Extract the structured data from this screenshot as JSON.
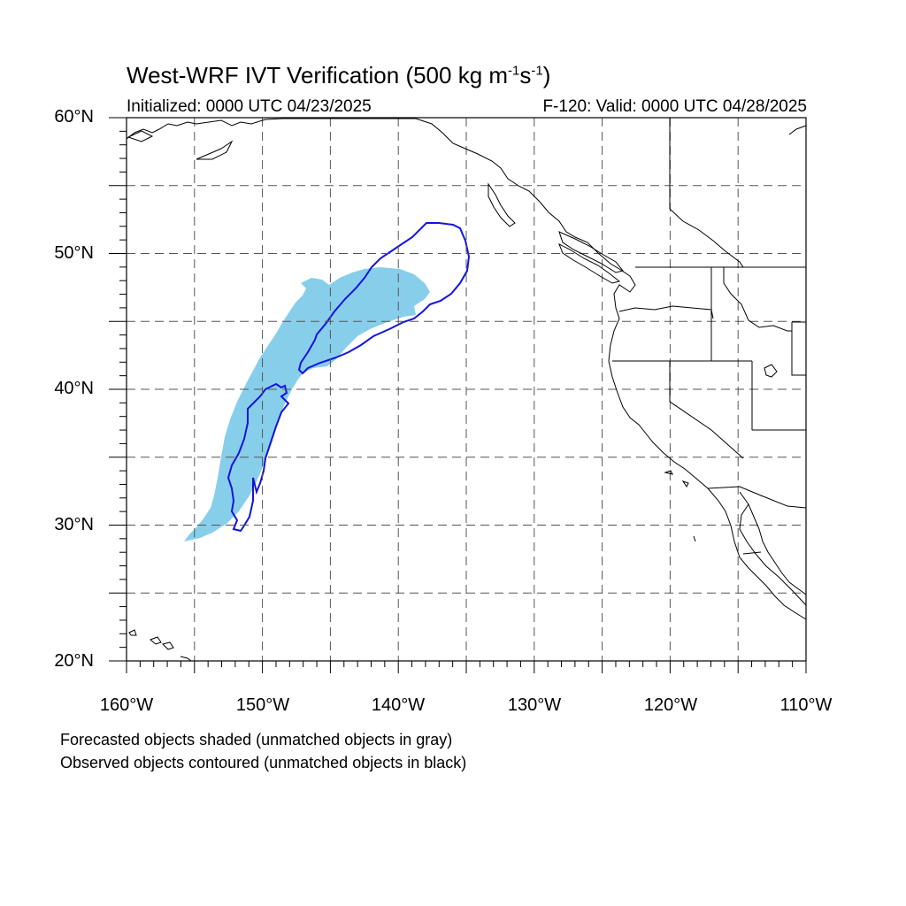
{
  "title": {
    "prefix": "West-WRF IVT Verification (500 kg m",
    "exp1": "-1",
    "mid": "s",
    "exp2": "-1",
    "suffix": ")"
  },
  "initialized": "Initialized: 0000 UTC 04/23/2025",
  "valid": "F-120: Valid: 0000 UTC 04/28/2025",
  "map": {
    "projection": "cylindrical equidistant",
    "lon_range": [
      -160,
      -110
    ],
    "lat_range": [
      20,
      60
    ],
    "grid": "dashed, every 5 degrees",
    "lat_labels": [
      "60°N",
      "50°N",
      "40°N",
      "30°N",
      "20°N"
    ],
    "lon_labels": [
      "160°W",
      "150°W",
      "140°W",
      "130°W",
      "120°W",
      "110°W"
    ],
    "forecast_object_color": "#87ceeb",
    "observed_object_color": "#1414dc",
    "coastline_color": "#000000"
  },
  "legend_notes": [
    "Forecasted objects shaded (unmatched objects in gray)",
    "Observed objects contoured (unmatched objects in black)"
  ]
}
